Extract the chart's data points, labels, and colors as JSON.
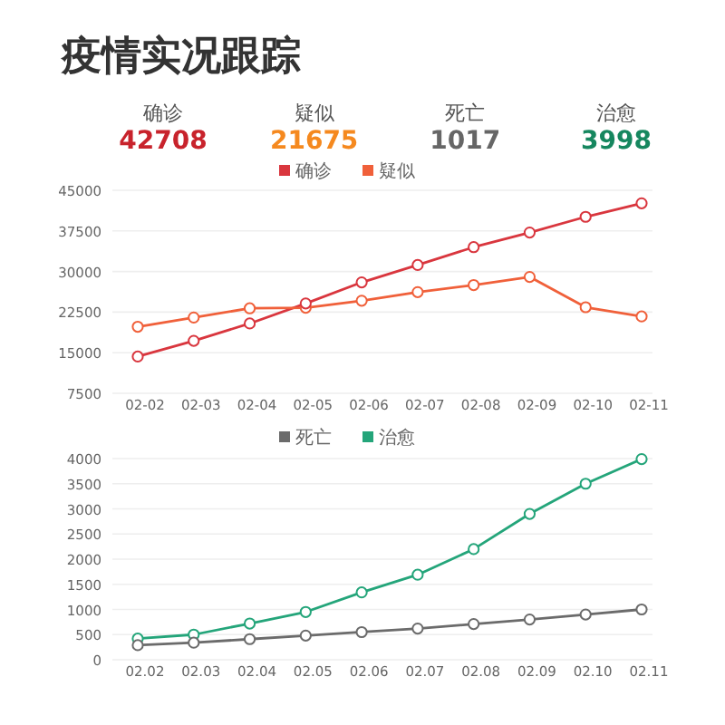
{
  "chart_data": [
    {
      "type": "other",
      "title": "疫情实况跟踪",
      "categories": [
        "确诊",
        "疑似",
        "死亡",
        "治愈"
      ],
      "values": [
        42708,
        21675,
        1017,
        3998
      ],
      "colors": [
        "#c8232c",
        "#f5891f",
        "#666666",
        "#16875f"
      ],
      "data_labels": true
    },
    {
      "type": "line",
      "categories": [
        "02-02",
        "02-03",
        "02-04",
        "02-05",
        "02-06",
        "02-07",
        "02-08",
        "02-09",
        "02-10",
        "02-11"
      ],
      "series": [
        {
          "name": "确诊",
          "color": "#d9363e",
          "values": [
            14300,
            17200,
            20400,
            24100,
            28000,
            31200,
            34500,
            37200,
            40100,
            42600
          ]
        },
        {
          "name": "疑似",
          "color": "#f0603a",
          "values": [
            19800,
            21500,
            23200,
            23300,
            24600,
            26200,
            27500,
            29000,
            23400,
            21700
          ]
        }
      ],
      "ylim": [
        7500,
        45000
      ],
      "yticks": [
        7500,
        15000,
        22500,
        30000,
        37500,
        45000
      ],
      "grid": "y",
      "legend": "top",
      "marker": "circle"
    },
    {
      "type": "line",
      "categories": [
        "02.02",
        "02.03",
        "02.04",
        "02.05",
        "02.06",
        "02.07",
        "02.08",
        "02.09",
        "02.10",
        "02.11"
      ],
      "series": [
        {
          "name": "死亡",
          "color": "#6b6b6b",
          "values": [
            290,
            340,
            410,
            480,
            550,
            620,
            710,
            800,
            900,
            1000
          ]
        },
        {
          "name": "治愈",
          "color": "#24a57a",
          "values": [
            420,
            500,
            720,
            950,
            1340,
            1690,
            2200,
            2900,
            3500,
            3990
          ]
        }
      ],
      "ylim": [
        0,
        4000
      ],
      "yticks": [
        0,
        500,
        1000,
        1500,
        2000,
        2500,
        3000,
        3500,
        4000
      ],
      "grid": "y",
      "legend": "top",
      "marker": "circle"
    }
  ]
}
